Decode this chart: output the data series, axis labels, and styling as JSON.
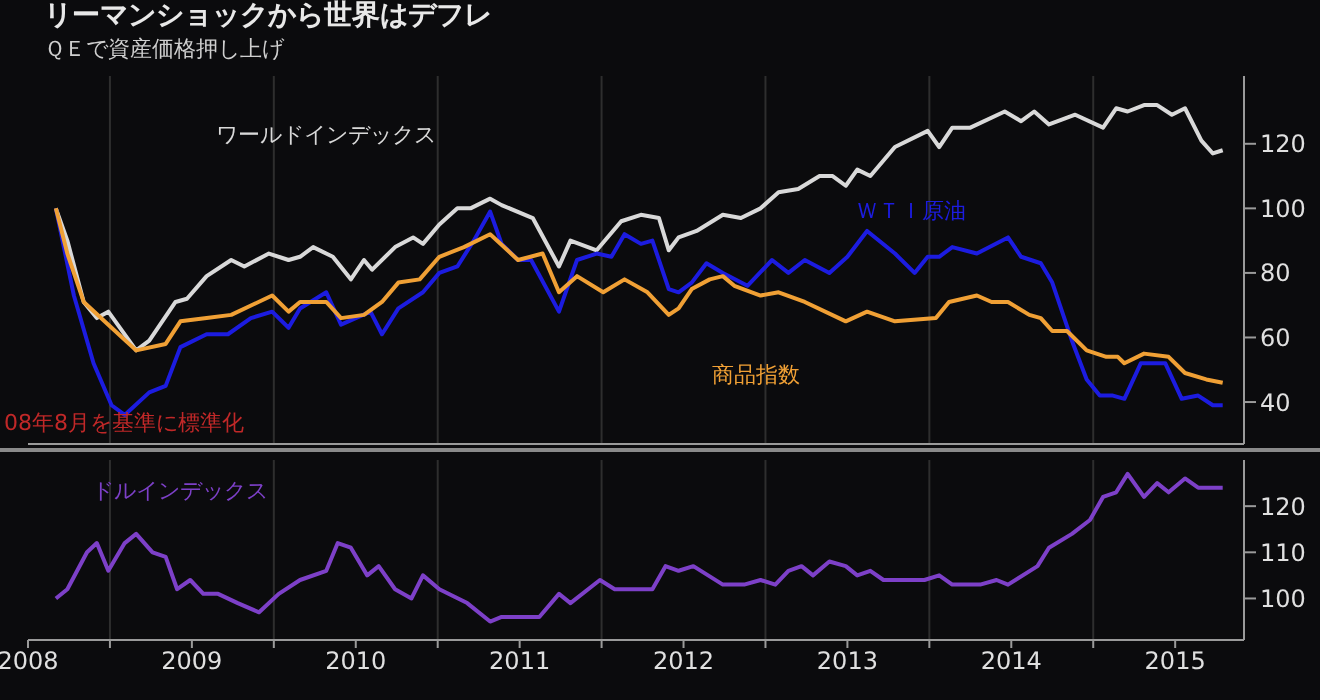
{
  "chart_data": [
    {
      "type": "line",
      "title": "リーマンショックから世界はデフレ",
      "subtitle": "ＱＥで資産価格押し上げ",
      "annotations": [
        "08年8月を基準に標準化"
      ],
      "tick_labels": "y",
      "grid": "x",
      "legend": false,
      "xlim": [
        2008.5,
        2015.92
      ],
      "xticks": [
        {
          "value": 2009,
          "label": null
        },
        {
          "value": 2010,
          "label": null
        },
        {
          "value": 2011,
          "label": null
        },
        {
          "value": 2012,
          "label": null
        },
        {
          "value": 2013,
          "label": null
        },
        {
          "value": 2014,
          "label": null
        },
        {
          "value": 2015,
          "label": null
        }
      ],
      "ylim": [
        27,
        141
      ],
      "yticks": [
        40,
        60,
        80,
        100,
        120
      ],
      "series": [
        {
          "name": "ワールドインデックス",
          "color": "#d9d9d9",
          "x": [
            2008.67,
            2008.74,
            2008.84,
            2008.92,
            2008.99,
            2009.16,
            2009.24,
            2009.4,
            2009.47,
            2009.59,
            2009.74,
            2009.82,
            2009.97,
            2010.09,
            2010.16,
            2010.24,
            2010.36,
            2010.47,
            2010.55,
            2010.6,
            2010.74,
            2010.85,
            2010.91,
            2011.01,
            2011.12,
            2011.2,
            2011.32,
            2011.39,
            2011.58,
            2011.74,
            2011.81,
            2011.97,
            2012.12,
            2012.24,
            2012.35,
            2012.41,
            2012.47,
            2012.58,
            2012.74,
            2012.85,
            2012.97,
            2013.08,
            2013.2,
            2013.33,
            2013.41,
            2013.49,
            2013.56,
            2013.64,
            2013.79,
            2013.99,
            2014.06,
            2014.14,
            2014.25,
            2014.46,
            2014.56,
            2014.64,
            2014.73,
            2014.89,
            2015.06,
            2015.14,
            2015.21,
            2015.31,
            2015.39,
            2015.48,
            2015.56,
            2015.66,
            2015.73,
            2015.79
          ],
          "values": [
            100,
            90,
            71,
            66,
            68,
            56,
            59,
            71,
            72,
            79,
            84,
            82,
            86,
            84,
            85,
            88,
            85,
            78,
            84,
            81,
            88,
            91,
            89,
            95,
            100,
            100,
            103,
            101,
            97,
            82,
            90,
            87,
            96,
            98,
            97,
            87,
            91,
            93,
            98,
            97,
            100,
            105,
            106,
            110,
            110,
            107,
            112,
            110,
            119,
            124,
            119,
            125,
            125,
            130,
            127,
            130,
            126,
            129,
            125,
            131,
            130,
            132,
            132,
            129,
            131,
            121,
            117,
            118
          ]
        },
        {
          "name": "ＷＴＩ原油",
          "color": "#1c1ce0",
          "x": [
            2008.67,
            2008.78,
            2008.9,
            2009.01,
            2009.09,
            2009.24,
            2009.34,
            2009.43,
            2009.59,
            2009.72,
            2009.86,
            2009.99,
            2010.09,
            2010.16,
            2010.32,
            2010.41,
            2010.59,
            2010.66,
            2010.76,
            2010.91,
            2011.01,
            2011.12,
            2011.22,
            2011.32,
            2011.39,
            2011.49,
            2011.57,
            2011.74,
            2011.85,
            2011.97,
            2012.06,
            2012.14,
            2012.24,
            2012.31,
            2012.41,
            2012.47,
            2012.55,
            2012.64,
            2012.74,
            2012.89,
            2013.04,
            2013.14,
            2013.24,
            2013.39,
            2013.5,
            2013.62,
            2013.79,
            2013.91,
            2013.99,
            2014.06,
            2014.14,
            2014.29,
            2014.48,
            2014.56,
            2014.68,
            2014.75,
            2014.87,
            2014.96,
            2015.04,
            2015.12,
            2015.19,
            2015.29,
            2015.44,
            2015.54,
            2015.64,
            2015.73,
            2015.79
          ],
          "values": [
            100,
            73,
            52,
            39,
            36,
            43,
            45,
            57,
            61,
            61,
            66,
            68,
            63,
            69,
            74,
            64,
            68,
            61,
            69,
            74,
            80,
            82,
            90,
            99,
            89,
            84,
            84,
            68,
            84,
            86,
            85,
            92,
            89,
            90,
            75,
            74,
            77,
            83,
            80,
            76,
            84,
            80,
            84,
            80,
            85,
            93,
            86,
            80,
            85,
            85,
            88,
            86,
            91,
            85,
            83,
            77,
            59,
            47,
            42,
            42,
            41,
            52,
            52,
            41,
            42,
            39,
            39
          ]
        },
        {
          "name": "商品指数",
          "color": "#f0a035",
          "x": [
            2008.67,
            2008.74,
            2008.84,
            2009.01,
            2009.16,
            2009.34,
            2009.43,
            2009.59,
            2009.74,
            2009.99,
            2010.09,
            2010.16,
            2010.32,
            2010.41,
            2010.55,
            2010.66,
            2010.76,
            2010.89,
            2011.01,
            2011.16,
            2011.32,
            2011.49,
            2011.64,
            2011.74,
            2011.85,
            2012.01,
            2012.14,
            2012.28,
            2012.41,
            2012.47,
            2012.55,
            2012.66,
            2012.74,
            2012.81,
            2012.97,
            2013.08,
            2013.24,
            2013.49,
            2013.62,
            2013.79,
            2014.04,
            2014.12,
            2014.29,
            2014.38,
            2014.48,
            2014.61,
            2014.68,
            2014.75,
            2014.84,
            2014.96,
            2015.08,
            2015.15,
            2015.19,
            2015.31,
            2015.46,
            2015.56,
            2015.69,
            2015.79
          ],
          "values": [
            100,
            86,
            71,
            63,
            56,
            58,
            65,
            66,
            67,
            73,
            68,
            71,
            71,
            66,
            67,
            71,
            77,
            78,
            85,
            88,
            92,
            84,
            86,
            74,
            79,
            74,
            78,
            74,
            67,
            69,
            75,
            78,
            79,
            76,
            73,
            74,
            71,
            65,
            68,
            65,
            66,
            71,
            73,
            71,
            71,
            67,
            66,
            62,
            62,
            56,
            54,
            54,
            52,
            55,
            54,
            49,
            47,
            46
          ]
        }
      ]
    },
    {
      "type": "line",
      "grid": "x",
      "legend": false,
      "xlim": [
        2008.5,
        2015.92
      ],
      "xticks": [
        {
          "value": 2008.5,
          "label": "2008"
        },
        {
          "value": 2009,
          "label": null
        },
        {
          "value": 2009.5,
          "label": "2009"
        },
        {
          "value": 2010,
          "label": null
        },
        {
          "value": 2010.5,
          "label": "2010"
        },
        {
          "value": 2011,
          "label": null
        },
        {
          "value": 2011.5,
          "label": "2011"
        },
        {
          "value": 2012,
          "label": null
        },
        {
          "value": 2012.5,
          "label": "2012"
        },
        {
          "value": 2013,
          "label": null
        },
        {
          "value": 2013.5,
          "label": "2013"
        },
        {
          "value": 2014,
          "label": null
        },
        {
          "value": 2014.5,
          "label": "2014"
        },
        {
          "value": 2015,
          "label": null
        },
        {
          "value": 2015.5,
          "label": "2015"
        }
      ],
      "ylim": [
        91,
        130
      ],
      "yticks": [
        100,
        110,
        120
      ],
      "series": [
        {
          "name": "ドルインデックス",
          "color": "#7d40c8",
          "x": [
            2008.67,
            2008.74,
            2008.86,
            2008.92,
            2008.99,
            2009.09,
            2009.16,
            2009.26,
            2009.34,
            2009.41,
            2009.49,
            2009.57,
            2009.66,
            2009.78,
            2009.91,
            2010.03,
            2010.16,
            2010.32,
            2010.39,
            2010.47,
            2010.57,
            2010.64,
            2010.74,
            2010.84,
            2010.91,
            2011.01,
            2011.18,
            2011.32,
            2011.39,
            2011.62,
            2011.74,
            2011.81,
            2011.99,
            2012.08,
            2012.31,
            2012.39,
            2012.47,
            2012.56,
            2012.74,
            2012.87,
            2012.97,
            2013.06,
            2013.14,
            2013.22,
            2013.29,
            2013.39,
            2013.49,
            2013.56,
            2013.64,
            2013.72,
            2013.97,
            2014.06,
            2014.14,
            2014.31,
            2014.41,
            2014.48,
            2014.66,
            2014.73,
            2014.87,
            2014.98,
            2015.06,
            2015.14,
            2015.21,
            2015.31,
            2015.39,
            2015.46,
            2015.56,
            2015.64,
            2015.79
          ],
          "values": [
            100,
            102,
            110,
            112,
            106,
            112,
            114,
            110,
            109,
            102,
            104,
            101,
            101,
            99,
            97,
            101,
            104,
            106,
            112,
            111,
            105,
            107,
            102,
            100,
            105,
            102,
            99,
            95,
            96,
            96,
            101,
            99,
            104,
            102,
            102,
            107,
            106,
            107,
            103,
            103,
            104,
            103,
            106,
            107,
            105,
            108,
            107,
            105,
            106,
            104,
            104,
            105,
            103,
            103,
            104,
            103,
            107,
            111,
            114,
            117,
            122,
            123,
            127,
            122,
            125,
            123,
            126,
            124,
            124
          ]
        }
      ]
    }
  ]
}
